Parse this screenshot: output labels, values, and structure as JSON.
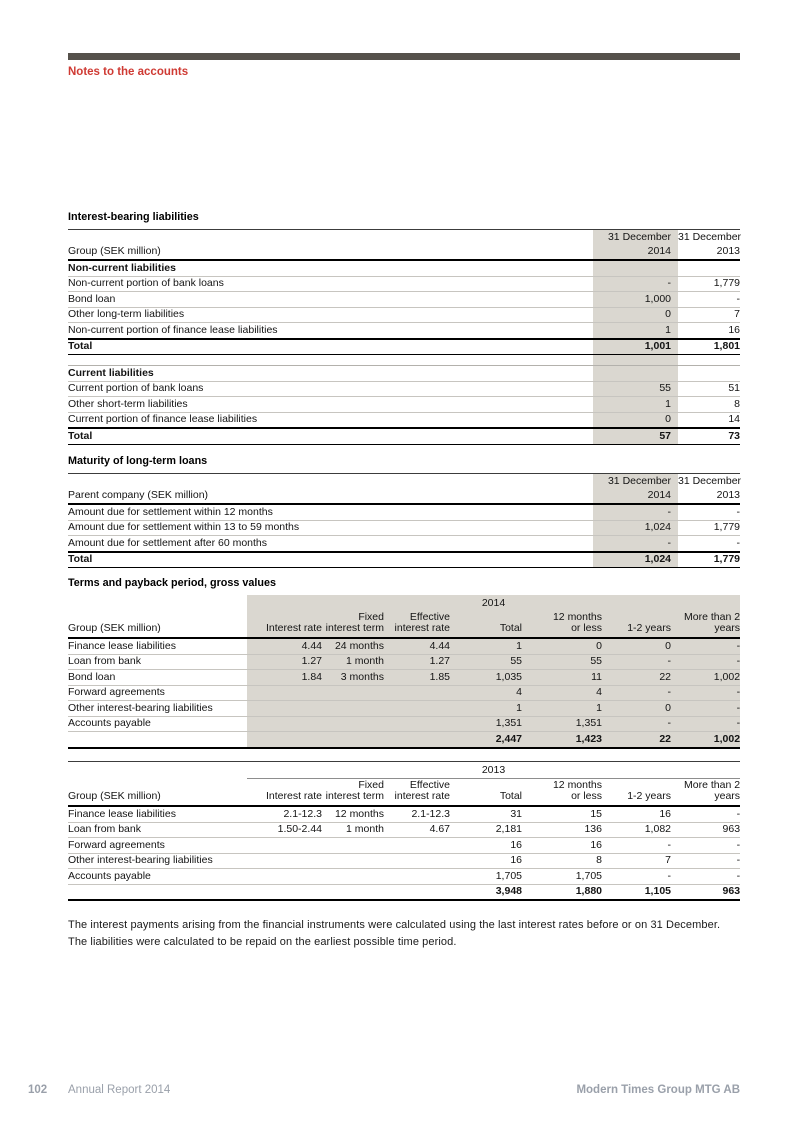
{
  "header": {
    "section_label": "Notes to the accounts"
  },
  "colors": {
    "accent_red": "#cf3a33",
    "top_bar": "#55514b",
    "shade": "#dad7d0",
    "footer_text": "#9aa0aa"
  },
  "tables": {
    "interest_bearing": {
      "title": "Interest-bearing liabilities",
      "row_header": "Group (SEK million)",
      "columns": [
        {
          "line1": "31 December",
          "line2": "2014"
        },
        {
          "line1": "31 December",
          "line2": "2013"
        }
      ],
      "sections": [
        {
          "name": "Non-current liabilities",
          "rows": [
            {
              "label": "Non-current portion of bank loans",
              "values": [
                "-",
                "1,779"
              ]
            },
            {
              "label": "Bond loan",
              "values": [
                "1,000",
                "-"
              ]
            },
            {
              "label": "Other long-term liabilities",
              "values": [
                "0",
                "7"
              ]
            },
            {
              "label": "Non-current portion of finance lease liabilities",
              "values": [
                "1",
                "16"
              ]
            }
          ],
          "total": {
            "label": "Total",
            "values": [
              "1,001",
              "1,801"
            ]
          }
        },
        {
          "name": "Current liabilities",
          "rows": [
            {
              "label": "Current portion of bank loans",
              "values": [
                "55",
                "51"
              ]
            },
            {
              "label": "Other short-term liabilities",
              "values": [
                "1",
                "8"
              ]
            },
            {
              "label": "Current portion of finance lease liabilities",
              "values": [
                "0",
                "14"
              ]
            }
          ],
          "total": {
            "label": "Total",
            "values": [
              "57",
              "73"
            ]
          }
        }
      ]
    },
    "maturity": {
      "title": "Maturity of long-term loans",
      "row_header": "Parent company (SEK million)",
      "columns": [
        {
          "line1": "31 December",
          "line2": "2014"
        },
        {
          "line1": "31 December",
          "line2": "2013"
        }
      ],
      "sections": [
        {
          "name": null,
          "rows": [
            {
              "label": "Amount due for settlement within 12 months",
              "values": [
                "-",
                "-"
              ]
            },
            {
              "label": "Amount due for settlement within 13 to 59 months",
              "values": [
                "1,024",
                "1,779"
              ]
            },
            {
              "label": "Amount due for settlement after 60 months",
              "values": [
                "-",
                "-"
              ]
            }
          ],
          "total": {
            "label": "Total",
            "values": [
              "1,024",
              "1,779"
            ]
          }
        }
      ]
    },
    "terms": {
      "title": "Terms and payback period, gross values",
      "row_header": "Group (SEK million)",
      "column_headers": [
        "Interest rate",
        "Fixed\ninterest term",
        "Effective\ninterest rate",
        "Total",
        "12 months\nor less",
        "1-2 years",
        "More than 2\nyears"
      ],
      "years": [
        {
          "year": "2014",
          "shaded": true,
          "rows": [
            {
              "label": "Finance lease liabilities",
              "values": [
                "4.44",
                "24 months",
                "4.44",
                "1",
                "0",
                "0",
                "-"
              ]
            },
            {
              "label": "Loan from bank",
              "values": [
                "1.27",
                "1 month",
                "1.27",
                "55",
                "55",
                "-",
                "-"
              ]
            },
            {
              "label": "Bond loan",
              "values": [
                "1.84",
                "3 months",
                "1.85",
                "1,035",
                "11",
                "22",
                "1,002"
              ]
            },
            {
              "label": "Forward agreements",
              "values": [
                "",
                "",
                "",
                "4",
                "4",
                "-",
                "-"
              ]
            },
            {
              "label": "Other interest-bearing liabilities",
              "values": [
                "",
                "",
                "",
                "1",
                "1",
                "0",
                "-"
              ]
            },
            {
              "label": "Accounts payable",
              "values": [
                "",
                "",
                "",
                "1,351",
                "1,351",
                "-",
                "-"
              ]
            }
          ],
          "total": {
            "label": "",
            "values": [
              "",
              "",
              "",
              "2,447",
              "1,423",
              "22",
              "1,002"
            ]
          }
        },
        {
          "year": "2013",
          "shaded": false,
          "rows": [
            {
              "label": "Finance lease liabilities",
              "values": [
                "2.1-12.3",
                "12 months",
                "2.1-12.3",
                "31",
                "15",
                "16",
                "-"
              ]
            },
            {
              "label": "Loan from bank",
              "values": [
                "1.50-2.44",
                "1 month",
                "4.67",
                "2,181",
                "136",
                "1,082",
                "963"
              ]
            },
            {
              "label": "Forward agreements",
              "values": [
                "",
                "",
                "",
                "16",
                "16",
                "-",
                "-"
              ]
            },
            {
              "label": "Other interest-bearing liabilities",
              "values": [
                "",
                "",
                "",
                "16",
                "8",
                "7",
                "-"
              ]
            },
            {
              "label": "Accounts payable",
              "values": [
                "",
                "",
                "",
                "1,705",
                "1,705",
                "-",
                "-"
              ]
            }
          ],
          "total": {
            "label": "",
            "values": [
              "",
              "",
              "",
              "3,948",
              "1,880",
              "1,105",
              "963"
            ]
          }
        }
      ]
    }
  },
  "note_paragraph": "The interest payments arising from the financial instruments were calculated using the last interest rates before or on 31 December. The liabilities were calculated to be repaid on the earliest possible time period.",
  "footer": {
    "page_number": "102",
    "report": "Annual Report 2014",
    "company": "Modern Times Group MTG AB"
  }
}
